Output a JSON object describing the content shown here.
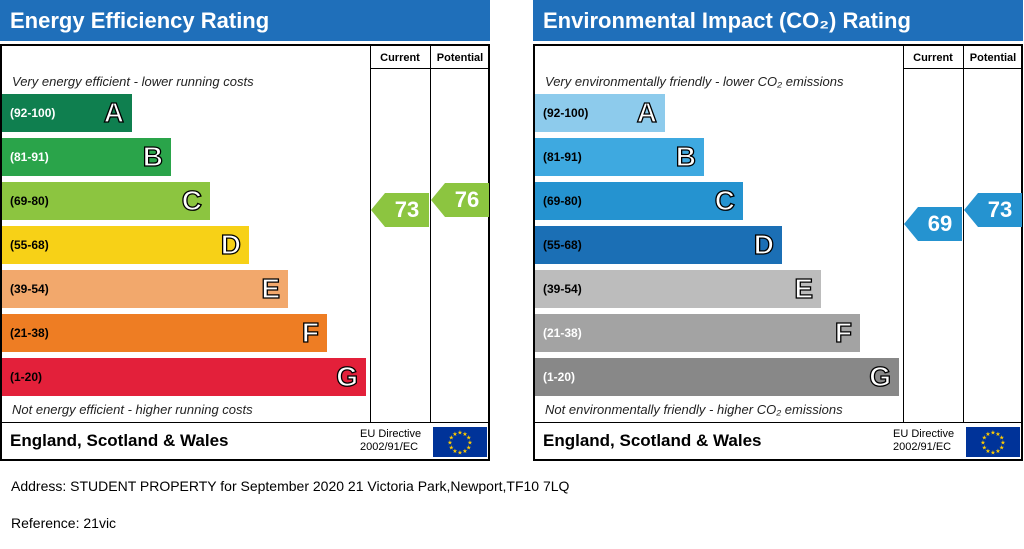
{
  "chart_data": [
    {
      "type": "bar",
      "title": "Energy Efficiency Rating",
      "columns": [
        "Current",
        "Potential"
      ],
      "top_caption": "Very energy efficient - lower running costs",
      "bottom_caption": "Not energy efficient - higher running costs",
      "bands": [
        {
          "letter": "A",
          "range": "(92-100)",
          "color": "#0f7f4f",
          "range_color": "#ffffff"
        },
        {
          "letter": "B",
          "range": "(81-91)",
          "color": "#2aa44a",
          "range_color": "#ffffff"
        },
        {
          "letter": "C",
          "range": "(69-80)",
          "color": "#8cc540",
          "range_color": "#000000"
        },
        {
          "letter": "D",
          "range": "(55-68)",
          "color": "#f7d117",
          "range_color": "#000000"
        },
        {
          "letter": "E",
          "range": "(39-54)",
          "color": "#f2a86c",
          "range_color": "#000000"
        },
        {
          "letter": "F",
          "range": "(21-38)",
          "color": "#ee7d23",
          "range_color": "#000000"
        },
        {
          "letter": "G",
          "range": "(1-20)",
          "color": "#e3203a",
          "range_color": "#000000"
        }
      ],
      "current": {
        "value": 73,
        "band": "C",
        "color": "#8cc540"
      },
      "potential": {
        "value": 76,
        "band": "C",
        "color": "#8cc540"
      },
      "region": "England, Scotland & Wales",
      "directive_line1": "EU Directive",
      "directive_line2": "2002/91/EC"
    },
    {
      "type": "bar",
      "title": "Environmental Impact (CO₂) Rating",
      "columns": [
        "Current",
        "Potential"
      ],
      "top_caption": "Very environmentally friendly - lower CO₂ emissions",
      "bottom_caption": "Not environmentally friendly - higher CO₂ emissions",
      "bands": [
        {
          "letter": "A",
          "range": "(92-100)",
          "color": "#8dcbec",
          "range_color": "#000000"
        },
        {
          "letter": "B",
          "range": "(81-91)",
          "color": "#3ea9e0",
          "range_color": "#000000"
        },
        {
          "letter": "C",
          "range": "(69-80)",
          "color": "#2593d0",
          "range_color": "#000000"
        },
        {
          "letter": "D",
          "range": "(55-68)",
          "color": "#1b6fb5",
          "range_color": "#000000"
        },
        {
          "letter": "E",
          "range": "(39-54)",
          "color": "#bcbcbc",
          "range_color": "#000000"
        },
        {
          "letter": "F",
          "range": "(21-38)",
          "color": "#a3a3a3",
          "range_color": "#ffffff"
        },
        {
          "letter": "G",
          "range": "(1-20)",
          "color": "#888888",
          "range_color": "#ffffff"
        }
      ],
      "current": {
        "value": 69,
        "band": "C",
        "color": "#2593d0"
      },
      "potential": {
        "value": 73,
        "band": "C",
        "color": "#2593d0"
      },
      "region": "England, Scotland & Wales",
      "directive_line1": "EU Directive",
      "directive_line2": "2002/91/EC"
    }
  ],
  "address": "Address: STUDENT PROPERTY for September 2020 21 Victoria Park,Newport,TF10 7LQ",
  "reference": "Reference: 21vic"
}
